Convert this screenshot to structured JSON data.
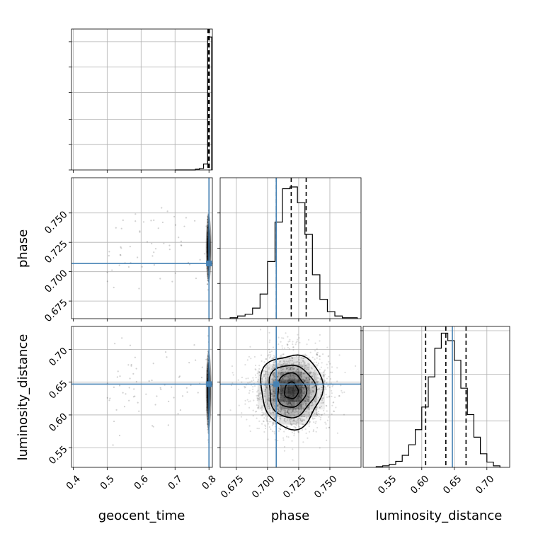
{
  "chart_data": {
    "type": "corner",
    "parameters": [
      "geocent_time",
      "phase",
      "luminosity_distance"
    ],
    "truths": {
      "geocent_time": 0.8,
      "phase": 0.707,
      "luminosity_distance": 0.647
    },
    "quantile_lines": {
      "geocent_time": [
        0.797,
        0.799,
        0.801
      ],
      "phase": [
        0.707,
        0.719,
        0.731
      ],
      "luminosity_distance": [
        0.606,
        0.637,
        0.668
      ]
    },
    "panels": {
      "geocent_time_hist": {
        "xlim": [
          0.395,
          0.81
        ],
        "bins": [
          0.7,
          0.712,
          0.724,
          0.736,
          0.748,
          0.76,
          0.772,
          0.784,
          0.796,
          0.808
        ],
        "counts": [
          0,
          0,
          0,
          0,
          0,
          1,
          2,
          8,
          180
        ]
      },
      "phase_vs_geocent_time": {
        "xlim": [
          0.395,
          0.81
        ],
        "ylim": [
          0.66,
          0.78
        ],
        "xticks": [
          "0.4",
          "0.5",
          "0.6",
          "0.7",
          "0.8"
        ],
        "yticks": [
          "0.675",
          "0.700",
          "0.725",
          "0.750"
        ],
        "ytick_values": [
          0.675,
          0.7,
          0.725,
          0.75
        ]
      },
      "phase_hist": {
        "xlim": [
          0.662,
          0.775
        ],
        "bins": [
          0.67,
          0.676,
          0.682,
          0.688,
          0.694,
          0.7,
          0.706,
          0.712,
          0.718,
          0.724,
          0.73,
          0.736,
          0.742,
          0.748,
          0.754,
          0.76,
          0.766,
          0.772
        ],
        "counts": [
          1,
          3,
          5,
          12,
          28,
          65,
          110,
          148,
          150,
          132,
          96,
          50,
          22,
          8,
          3,
          1,
          1
        ]
      },
      "luminosity_distance_vs_geocent_time": {
        "xlim": [
          0.395,
          0.81
        ],
        "ylim": [
          0.52,
          0.735
        ],
        "xticks": [
          "0.4",
          "0.5",
          "0.6",
          "0.7",
          "0.8"
        ],
        "xtick_values": [
          0.4,
          0.5,
          0.6,
          0.7,
          0.8
        ],
        "yticks": [
          "0.55",
          "0.60",
          "0.65",
          "0.70"
        ],
        "ytick_values": [
          0.55,
          0.6,
          0.65,
          0.7
        ]
      },
      "luminosity_distance_vs_phase": {
        "xlim": [
          0.662,
          0.775
        ],
        "ylim": [
          0.52,
          0.735
        ],
        "xticks": [
          "0.675",
          "0.700",
          "0.725",
          "0.750"
        ],
        "xtick_values": [
          0.675,
          0.7,
          0.725,
          0.75
        ],
        "density_center": [
          0.719,
          0.637
        ],
        "density_sigma": [
          0.012,
          0.025
        ]
      },
      "luminosity_distance_hist": {
        "xlim": [
          0.51,
          0.735
        ],
        "bins": [
          0.53,
          0.54,
          0.55,
          0.56,
          0.57,
          0.58,
          0.59,
          0.6,
          0.61,
          0.62,
          0.63,
          0.64,
          0.65,
          0.66,
          0.67,
          0.68,
          0.69,
          0.7,
          0.71,
          0.72
        ],
        "counts": [
          1,
          2,
          4,
          8,
          16,
          30,
          50,
          80,
          120,
          158,
          178,
          168,
          142,
          105,
          70,
          40,
          18,
          7,
          2
        ],
        "xticks": [
          "0.55",
          "0.60",
          "0.65",
          "0.70"
        ],
        "xtick_values": [
          0.55,
          0.6,
          0.65,
          0.7
        ]
      }
    },
    "axis_labels": {
      "x": [
        "geocent_time",
        "phase",
        "luminosity_distance"
      ],
      "y": [
        "phase",
        "luminosity_distance"
      ]
    },
    "colors": {
      "truth": "#4682b4",
      "hist": "#000000",
      "grid": "#b0b0b0"
    }
  }
}
